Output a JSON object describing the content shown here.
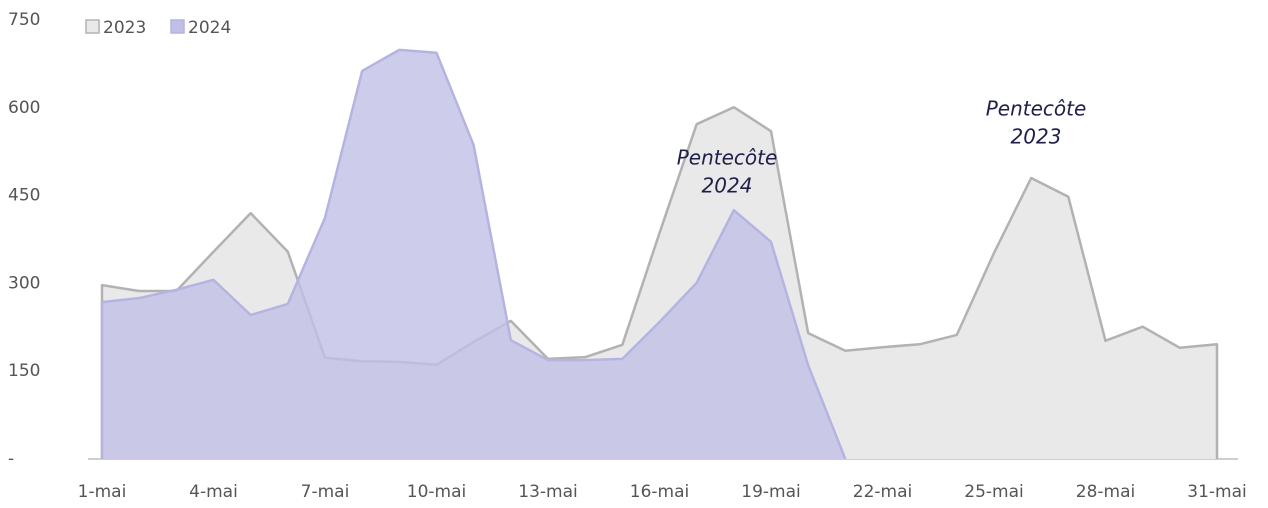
{
  "chart_data": {
    "type": "area",
    "categories": [
      "1-mai",
      null,
      null,
      "4-mai",
      null,
      null,
      "7-mai",
      null,
      null,
      "10-mai",
      null,
      null,
      "13-mai",
      null,
      null,
      "16-mai",
      null,
      null,
      "19-mai",
      null,
      null,
      "22-mai",
      null,
      null,
      "25-mai",
      null,
      null,
      "28-mai",
      null,
      null,
      "31-mai"
    ],
    "series": [
      {
        "name": "2023",
        "color": "#e9e9e9",
        "line_color": "#b2b2b2",
        "values": [
          297,
          287,
          287,
          354,
          420,
          354,
          173,
          167,
          166,
          161,
          200,
          236,
          171,
          174,
          195,
          386,
          572,
          601,
          560,
          215,
          185,
          191,
          196,
          212,
          352,
          480,
          448,
          202,
          226,
          190,
          196
        ]
      },
      {
        "name": "2024",
        "color": "#c0c0e6",
        "line_color": "#b4b4e2",
        "values": [
          268,
          275,
          289,
          306,
          246,
          265,
          412,
          663,
          699,
          694,
          536,
          203,
          169,
          169,
          171,
          234,
          301,
          425,
          371,
          160,
          0,
          null,
          null,
          null,
          null,
          null,
          null,
          null,
          null,
          null,
          null
        ]
      }
    ],
    "ylim": [
      0,
      750
    ],
    "yticks": [
      {
        "value": 0,
        "label": "-"
      },
      150,
      300,
      450,
      600,
      750
    ],
    "grid": false,
    "legend": "top-left",
    "annotations": [
      [
        "Pentecôte",
        "2024"
      ],
      [
        "Pentecôte",
        "2023"
      ]
    ]
  }
}
